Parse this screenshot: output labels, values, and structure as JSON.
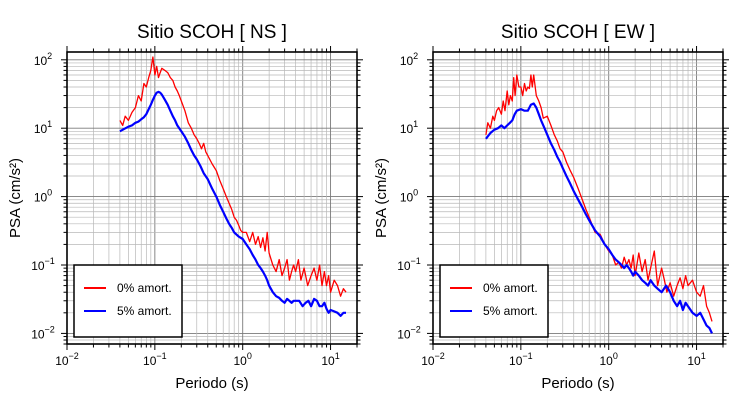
{
  "chart_data": [
    {
      "type": "line",
      "title": "Sitio SCOH [ NS ]",
      "xlabel": "Periodo (s)",
      "ylabel": "PSA (cm/s²)",
      "xscale": "log",
      "yscale": "log",
      "xlim": [
        0.01,
        20
      ],
      "ylim": [
        0.007,
        130
      ],
      "x_ticks": [
        {
          "base": "10",
          "exp": "−2",
          "value": 0.01
        },
        {
          "base": "10",
          "exp": "−1",
          "value": 0.1
        },
        {
          "base": "10",
          "exp": "0",
          "value": 1
        },
        {
          "base": "10",
          "exp": "1",
          "value": 10
        }
      ],
      "y_ticks": [
        {
          "base": "10",
          "exp": "−2",
          "value": 0.01
        },
        {
          "base": "10",
          "exp": "−1",
          "value": 0.1
        },
        {
          "base": "10",
          "exp": "0",
          "value": 1
        },
        {
          "base": "10",
          "exp": "1",
          "value": 10
        },
        {
          "base": "10",
          "exp": "2",
          "value": 100
        }
      ],
      "grid": true,
      "legend_position": "bottom-left",
      "series": [
        {
          "name": "0% amort.",
          "color": "#ff0000",
          "x": [
            0.04,
            0.043,
            0.046,
            0.05,
            0.055,
            0.06,
            0.065,
            0.07,
            0.075,
            0.08,
            0.085,
            0.09,
            0.095,
            0.1,
            0.105,
            0.11,
            0.115,
            0.12,
            0.13,
            0.14,
            0.15,
            0.16,
            0.17,
            0.18,
            0.19,
            0.2,
            0.22,
            0.24,
            0.26,
            0.28,
            0.3,
            0.32,
            0.34,
            0.36,
            0.38,
            0.4,
            0.45,
            0.5,
            0.55,
            0.6,
            0.65,
            0.7,
            0.75,
            0.8,
            0.85,
            0.9,
            0.95,
            1.0,
            1.1,
            1.2,
            1.3,
            1.4,
            1.5,
            1.6,
            1.7,
            1.8,
            1.9,
            2.0,
            2.2,
            2.4,
            2.6,
            2.8,
            3.0,
            3.2,
            3.4,
            3.6,
            3.8,
            4.0,
            4.3,
            4.6,
            5.0,
            5.5,
            6.0,
            6.5,
            7.0,
            7.5,
            8.0,
            8.5,
            9.0,
            9.5,
            10.0,
            11.0,
            12.0,
            13.0,
            14.0,
            15.0
          ],
          "y": [
            13,
            11,
            15,
            13,
            17,
            20,
            30,
            25,
            45,
            40,
            55,
            70,
            110,
            60,
            80,
            55,
            65,
            75,
            70,
            65,
            55,
            50,
            40,
            35,
            30,
            25,
            18,
            12,
            10,
            8,
            7,
            6,
            5,
            6,
            4.5,
            4,
            3,
            2.4,
            1.7,
            1.3,
            1.0,
            0.8,
            0.65,
            0.5,
            0.45,
            0.38,
            0.32,
            0.3,
            0.3,
            0.22,
            0.3,
            0.2,
            0.26,
            0.18,
            0.25,
            0.16,
            0.3,
            0.15,
            0.1,
            0.08,
            0.12,
            0.07,
            0.09,
            0.12,
            0.06,
            0.08,
            0.1,
            0.08,
            0.12,
            0.06,
            0.09,
            0.05,
            0.07,
            0.09,
            0.06,
            0.1,
            0.05,
            0.08,
            0.05,
            0.07,
            0.04,
            0.06,
            0.05,
            0.035,
            0.045,
            0.04
          ]
        },
        {
          "name": "5% amort.",
          "color": "#0000ff",
          "x": [
            0.04,
            0.045,
            0.05,
            0.055,
            0.06,
            0.065,
            0.07,
            0.075,
            0.08,
            0.085,
            0.09,
            0.095,
            0.1,
            0.105,
            0.11,
            0.115,
            0.12,
            0.13,
            0.14,
            0.15,
            0.16,
            0.17,
            0.18,
            0.2,
            0.22,
            0.24,
            0.26,
            0.28,
            0.3,
            0.33,
            0.36,
            0.4,
            0.45,
            0.5,
            0.55,
            0.6,
            0.65,
            0.7,
            0.75,
            0.8,
            0.9,
            1.0,
            1.1,
            1.2,
            1.3,
            1.4,
            1.5,
            1.6,
            1.7,
            1.8,
            1.9,
            2.0,
            2.2,
            2.4,
            2.6,
            2.8,
            3.0,
            3.2,
            3.4,
            3.6,
            3.8,
            4.0,
            4.4,
            4.8,
            5.2,
            5.6,
            6.0,
            6.5,
            7.0,
            7.5,
            8.0,
            8.5,
            9.0,
            9.5,
            10.0,
            11.0,
            12.0,
            13.0,
            14.0,
            15.0
          ],
          "y": [
            9,
            9.8,
            10.5,
            11,
            12,
            12.5,
            13.5,
            14.5,
            16,
            19,
            22,
            26,
            30,
            33,
            34,
            33,
            31,
            26,
            22,
            18,
            15,
            13,
            11,
            9,
            7.5,
            6,
            4.8,
            4.0,
            3.5,
            2.8,
            2.2,
            1.8,
            1.3,
            1.0,
            0.75,
            0.6,
            0.48,
            0.4,
            0.35,
            0.3,
            0.26,
            0.24,
            0.2,
            0.17,
            0.14,
            0.12,
            0.1,
            0.09,
            0.08,
            0.07,
            0.06,
            0.05,
            0.04,
            0.035,
            0.033,
            0.03,
            0.028,
            0.032,
            0.03,
            0.028,
            0.03,
            0.03,
            0.03,
            0.025,
            0.028,
            0.03,
            0.025,
            0.032,
            0.03,
            0.025,
            0.025,
            0.028,
            0.023,
            0.02,
            0.022,
            0.021,
            0.02,
            0.018,
            0.02,
            0.02
          ]
        }
      ]
    },
    {
      "type": "line",
      "title": "Sitio SCOH [ EW ]",
      "xlabel": "Periodo (s)",
      "ylabel": "PSA (cm/s²)",
      "xscale": "log",
      "yscale": "log",
      "xlim": [
        0.01,
        20
      ],
      "ylim": [
        0.007,
        130
      ],
      "x_ticks": [
        {
          "base": "10",
          "exp": "−2",
          "value": 0.01
        },
        {
          "base": "10",
          "exp": "−1",
          "value": 0.1
        },
        {
          "base": "10",
          "exp": "0",
          "value": 1
        },
        {
          "base": "10",
          "exp": "1",
          "value": 10
        }
      ],
      "y_ticks": [
        {
          "base": "10",
          "exp": "−2",
          "value": 0.01
        },
        {
          "base": "10",
          "exp": "−1",
          "value": 0.1
        },
        {
          "base": "10",
          "exp": "0",
          "value": 1
        },
        {
          "base": "10",
          "exp": "1",
          "value": 10
        },
        {
          "base": "10",
          "exp": "2",
          "value": 100
        }
      ],
      "grid": true,
      "legend_position": "bottom-left",
      "series": [
        {
          "name": "0% amort.",
          "color": "#ff0000",
          "x": [
            0.04,
            0.042,
            0.045,
            0.048,
            0.05,
            0.053,
            0.056,
            0.06,
            0.063,
            0.066,
            0.07,
            0.073,
            0.076,
            0.08,
            0.083,
            0.086,
            0.09,
            0.095,
            0.1,
            0.105,
            0.11,
            0.115,
            0.12,
            0.125,
            0.13,
            0.135,
            0.14,
            0.15,
            0.16,
            0.17,
            0.18,
            0.2,
            0.22,
            0.24,
            0.26,
            0.28,
            0.3,
            0.33,
            0.36,
            0.4,
            0.45,
            0.5,
            0.55,
            0.6,
            0.65,
            0.7,
            0.8,
            0.9,
            1.0,
            1.1,
            1.2,
            1.3,
            1.4,
            1.5,
            1.6,
            1.7,
            1.8,
            1.9,
            2.0,
            2.2,
            2.4,
            2.6,
            2.8,
            3.0,
            3.3,
            3.6,
            4.0,
            4.3,
            4.6,
            5.0,
            5.5,
            6.0,
            6.5,
            7.0,
            7.5,
            8.0,
            9.0,
            10.0,
            11.0,
            12.0,
            13.0,
            14.0,
            15.0
          ],
          "y": [
            8,
            12,
            10,
            15,
            13,
            18,
            20,
            16,
            25,
            18,
            35,
            22,
            30,
            25,
            55,
            30,
            60,
            40,
            40,
            30,
            45,
            35,
            40,
            38,
            60,
            40,
            60,
            30,
            25,
            20,
            14,
            15,
            11,
            8,
            6.5,
            5,
            4.5,
            3.2,
            2.5,
            1.9,
            1.3,
            0.9,
            0.65,
            0.5,
            0.38,
            0.3,
            0.28,
            0.2,
            0.16,
            0.14,
            0.1,
            0.11,
            0.09,
            0.13,
            0.1,
            0.12,
            0.09,
            0.14,
            0.07,
            0.15,
            0.08,
            0.12,
            0.06,
            0.09,
            0.16,
            0.05,
            0.09,
            0.06,
            0.04,
            0.055,
            0.035,
            0.05,
            0.065,
            0.045,
            0.07,
            0.05,
            0.06,
            0.04,
            0.035,
            0.05,
            0.025,
            0.02,
            0.015
          ]
        },
        {
          "name": "5% amort.",
          "color": "#0000ff",
          "x": [
            0.04,
            0.045,
            0.05,
            0.055,
            0.06,
            0.065,
            0.07,
            0.075,
            0.08,
            0.085,
            0.09,
            0.1,
            0.11,
            0.12,
            0.13,
            0.14,
            0.15,
            0.16,
            0.17,
            0.18,
            0.2,
            0.22,
            0.24,
            0.26,
            0.28,
            0.3,
            0.33,
            0.36,
            0.4,
            0.45,
            0.5,
            0.55,
            0.6,
            0.7,
            0.8,
            0.9,
            1.0,
            1.1,
            1.2,
            1.3,
            1.4,
            1.5,
            1.6,
            1.7,
            1.8,
            1.9,
            2.0,
            2.2,
            2.4,
            2.6,
            2.8,
            3.0,
            3.3,
            3.6,
            4.0,
            4.5,
            5.0,
            5.5,
            6.0,
            6.5,
            7.0,
            7.5,
            8.0,
            9.0,
            10.0,
            11.0,
            12.0,
            13.0,
            14.0,
            15.0
          ],
          "y": [
            7,
            8.5,
            9.5,
            10,
            11,
            10,
            11,
            12,
            13,
            16,
            18,
            19,
            18,
            18,
            22,
            23,
            20,
            16,
            13,
            11,
            8,
            6,
            4.8,
            3.8,
            3.2,
            2.6,
            2,
            1.6,
            1.2,
            0.9,
            0.7,
            0.55,
            0.45,
            0.32,
            0.26,
            0.2,
            0.17,
            0.14,
            0.12,
            0.11,
            0.1,
            0.09,
            0.1,
            0.09,
            0.08,
            0.07,
            0.08,
            0.07,
            0.06,
            0.055,
            0.05,
            0.06,
            0.05,
            0.045,
            0.04,
            0.05,
            0.04,
            0.03,
            0.025,
            0.03,
            0.022,
            0.028,
            0.025,
            0.02,
            0.018,
            0.02,
            0.016,
            0.013,
            0.012,
            0.01
          ]
        }
      ]
    }
  ]
}
